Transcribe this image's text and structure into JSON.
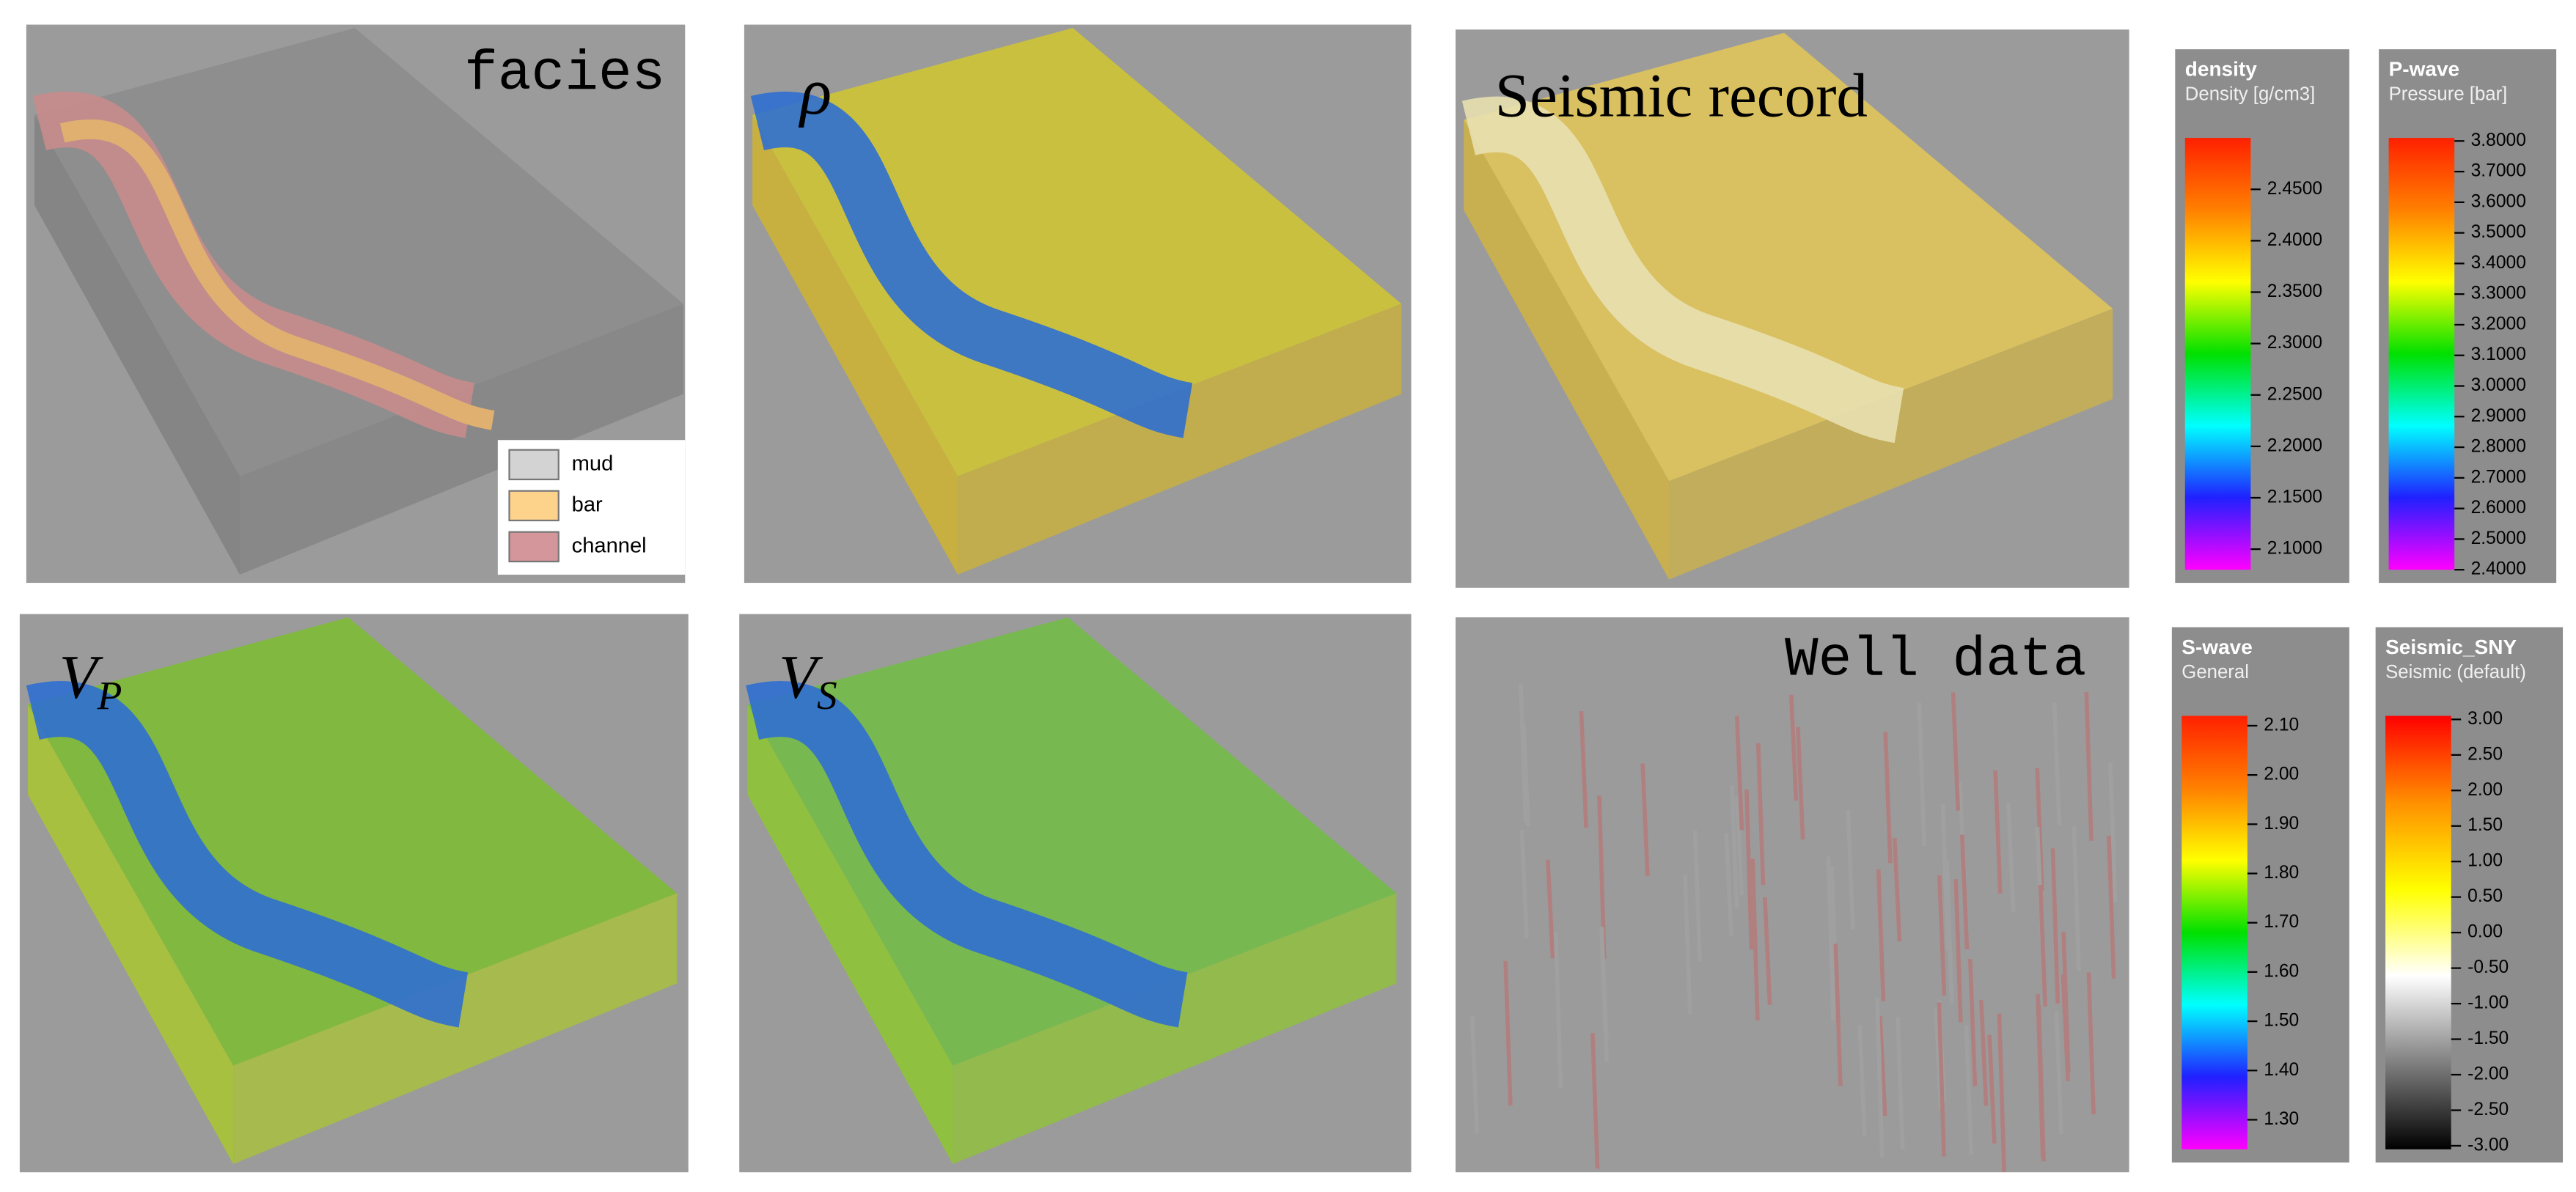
{
  "panels": [
    {
      "label": "facies"
    },
    {
      "label": "ρ"
    },
    {
      "label": "Seismic record"
    },
    {
      "label": {
        "main": "V",
        "sub": "P"
      }
    },
    {
      "label": {
        "main": "V",
        "sub": "S"
      }
    },
    {
      "label": "Well data"
    }
  ],
  "legend": [
    {
      "name": "mud",
      "color": "#d3d3d3"
    },
    {
      "name": "bar",
      "color": "#fdd28a"
    },
    {
      "name": "channel",
      "color": "#d4969a"
    }
  ],
  "colorbars": [
    {
      "title": "density",
      "subtitle": "Density [g/cm3]",
      "lim": [
        2.08,
        2.5
      ],
      "ticks": [
        {
          "value": 2.1,
          "label": "2.1000"
        },
        {
          "value": 2.15,
          "label": "2.1500"
        },
        {
          "value": 2.2,
          "label": "2.2000"
        },
        {
          "value": 2.25,
          "label": "2.2500"
        },
        {
          "value": 2.3,
          "label": "2.3000"
        },
        {
          "value": 2.35,
          "label": "2.3500"
        },
        {
          "value": 2.4,
          "label": "2.4000"
        },
        {
          "value": 2.45,
          "label": "2.4500"
        }
      ],
      "colors": [
        "#ff00ff",
        "#2020ff",
        "#00ffff",
        "#00e000",
        "#ffff00",
        "#ff8000",
        "#ff2000"
      ]
    },
    {
      "title": "P-wave",
      "subtitle": "Pressure [bar]",
      "lim": [
        2.4,
        3.81
      ],
      "ticks": [
        {
          "value": 2.4,
          "label": "2.4000"
        },
        {
          "value": 2.5,
          "label": "2.5000"
        },
        {
          "value": 2.6,
          "label": "2.6000"
        },
        {
          "value": 2.7,
          "label": "2.7000"
        },
        {
          "value": 2.8,
          "label": "2.8000"
        },
        {
          "value": 2.9,
          "label": "2.9000"
        },
        {
          "value": 3.0,
          "label": "3.0000"
        },
        {
          "value": 3.1,
          "label": "3.1000"
        },
        {
          "value": 3.2,
          "label": "3.2000"
        },
        {
          "value": 3.3,
          "label": "3.3000"
        },
        {
          "value": 3.4,
          "label": "3.4000"
        },
        {
          "value": 3.5,
          "label": "3.5000"
        },
        {
          "value": 3.6,
          "label": "3.6000"
        },
        {
          "value": 3.7,
          "label": "3.7000"
        },
        {
          "value": 3.8,
          "label": "3.8000"
        }
      ],
      "colors": [
        "#ff00ff",
        "#2020ff",
        "#00ffff",
        "#00e000",
        "#ffff00",
        "#ff8000",
        "#ff2000"
      ]
    },
    {
      "title": "S-wave",
      "subtitle": "General",
      "lim": [
        1.24,
        2.12
      ],
      "ticks": [
        {
          "value": 1.3,
          "label": "1.30"
        },
        {
          "value": 1.4,
          "label": "1.40"
        },
        {
          "value": 1.5,
          "label": "1.50"
        },
        {
          "value": 1.6,
          "label": "1.60"
        },
        {
          "value": 1.7,
          "label": "1.70"
        },
        {
          "value": 1.8,
          "label": "1.80"
        },
        {
          "value": 1.9,
          "label": "1.90"
        },
        {
          "value": 2.0,
          "label": "2.00"
        },
        {
          "value": 2.1,
          "label": "2.10"
        }
      ],
      "colors": [
        "#ff00ff",
        "#2020ff",
        "#00ffff",
        "#00e000",
        "#ffff00",
        "#ff8000",
        "#ff2000"
      ]
    },
    {
      "title": "Seismic_SNY",
      "subtitle": "Seismic (default)",
      "lim": [
        -3.05,
        3.05
      ],
      "ticks": [
        {
          "value": -3,
          "label": "-3.00"
        },
        {
          "value": -2.5,
          "label": "-2.50"
        },
        {
          "value": -2,
          "label": "-2.00"
        },
        {
          "value": -1.5,
          "label": "-1.50"
        },
        {
          "value": -1,
          "label": "-1.00"
        },
        {
          "value": -0.5,
          "label": "-0.50"
        },
        {
          "value": 0,
          "label": "0.00"
        },
        {
          "value": 0.5,
          "label": "0.50"
        },
        {
          "value": 1,
          "label": "1.00"
        },
        {
          "value": 1.5,
          "label": "1.50"
        },
        {
          "value": 2,
          "label": "2.00"
        },
        {
          "value": 2.5,
          "label": "2.50"
        },
        {
          "value": 3,
          "label": "3.00"
        }
      ],
      "colors": [
        "#000000",
        "#808080",
        "#ffffff",
        "#ffff00",
        "#ff9000",
        "#ff0000"
      ]
    }
  ]
}
